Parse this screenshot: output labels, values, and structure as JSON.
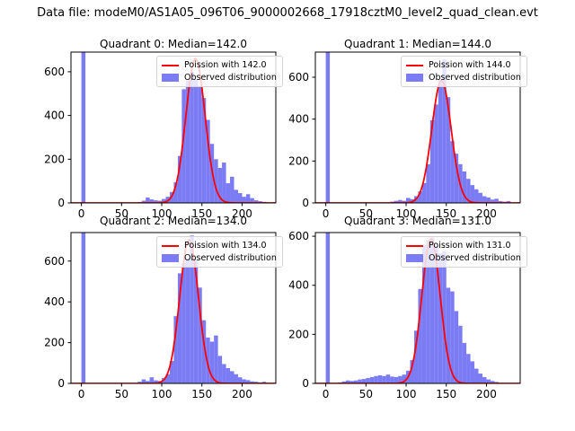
{
  "figure": {
    "suptitle": "Data file: modeM0/AS1A05_096T06_9000002668_17918cztM0_level2_quad_clean.evt"
  },
  "colors": {
    "bar": "#7b7bf4",
    "curve": "#ff0000",
    "legend_border": "#d4d4d4",
    "axes": "#000000"
  },
  "chart_data": [
    {
      "type": "histogram",
      "title": "Quadrant 0: Median=142.0",
      "median": 142.0,
      "legend": [
        "Poission with 142.0",
        "Observed distribution"
      ],
      "xlim": [
        -13,
        242
      ],
      "ylim": [
        0,
        690
      ],
      "xticks": [
        0,
        50,
        100,
        150,
        200
      ],
      "yticks": [
        0,
        200,
        400,
        600
      ],
      "bin_start": 0,
      "bin_width": 5,
      "counts": [
        3000,
        0,
        0,
        0,
        0,
        0,
        0,
        0,
        0,
        0,
        0,
        0,
        0,
        0,
        4,
        10,
        25,
        16,
        12,
        10,
        18,
        28,
        50,
        95,
        215,
        520,
        560,
        600,
        565,
        530,
        480,
        380,
        270,
        200,
        160,
        185,
        90,
        120,
        60,
        45,
        28,
        40,
        22,
        12,
        8,
        5
      ],
      "poisson_lambda": 142.0,
      "curve_peak": 660
    },
    {
      "type": "histogram",
      "title": "Quadrant 1: Median=144.0",
      "median": 144.0,
      "legend": [
        "Poission with 144.0",
        "Observed distribution"
      ],
      "xlim": [
        -13,
        242
      ],
      "ylim": [
        0,
        720
      ],
      "xticks": [
        0,
        50,
        100,
        150,
        200
      ],
      "yticks": [
        0,
        200,
        400,
        600
      ],
      "bin_start": 0,
      "bin_width": 5,
      "counts": [
        3000,
        0,
        0,
        0,
        0,
        0,
        0,
        0,
        0,
        0,
        0,
        0,
        0,
        0,
        0,
        0,
        6,
        10,
        14,
        10,
        24,
        18,
        32,
        55,
        95,
        185,
        395,
        470,
        590,
        685,
        505,
        295,
        235,
        185,
        150,
        115,
        85,
        65,
        48,
        32,
        26,
        16,
        20,
        9,
        6,
        9
      ],
      "poisson_lambda": 144.0,
      "curve_peak": 585
    },
    {
      "type": "histogram",
      "title": "Quadrant 2: Median=134.0",
      "median": 134.0,
      "legend": [
        "Poission with 134.0",
        "Observed distribution"
      ],
      "xlim": [
        -13,
        242
      ],
      "ylim": [
        0,
        740
      ],
      "xticks": [
        0,
        50,
        100,
        150,
        200
      ],
      "yticks": [
        0,
        200,
        400,
        600
      ],
      "bin_start": 0,
      "bin_width": 5,
      "counts": [
        3000,
        0,
        0,
        0,
        0,
        0,
        0,
        0,
        0,
        0,
        0,
        0,
        0,
        0,
        8,
        20,
        12,
        30,
        15,
        12,
        26,
        45,
        110,
        330,
        540,
        590,
        615,
        725,
        610,
        470,
        310,
        225,
        205,
        235,
        135,
        95,
        75,
        60,
        45,
        30,
        20,
        16,
        10,
        8,
        5,
        8
      ],
      "poisson_lambda": 134.0,
      "curve_peak": 705
    },
    {
      "type": "histogram",
      "title": "Quadrant 3: Median=131.0",
      "median": 131.0,
      "legend": [
        "Poission with 131.0",
        "Observed distribution"
      ],
      "xlim": [
        -13,
        242
      ],
      "ylim": [
        0,
        615
      ],
      "xticks": [
        0,
        50,
        100,
        150,
        200
      ],
      "yticks": [
        0,
        200,
        400,
        600
      ],
      "bin_start": 0,
      "bin_width": 5,
      "counts": [
        3000,
        0,
        0,
        4,
        8,
        12,
        10,
        12,
        16,
        18,
        22,
        26,
        30,
        33,
        30,
        36,
        28,
        26,
        30,
        36,
        52,
        95,
        215,
        385,
        565,
        585,
        595,
        560,
        530,
        540,
        390,
        375,
        295,
        235,
        165,
        120,
        90,
        60,
        40,
        26,
        16,
        10,
        6,
        0,
        0,
        0
      ],
      "poisson_lambda": 131.0,
      "curve_peak": 589
    }
  ]
}
